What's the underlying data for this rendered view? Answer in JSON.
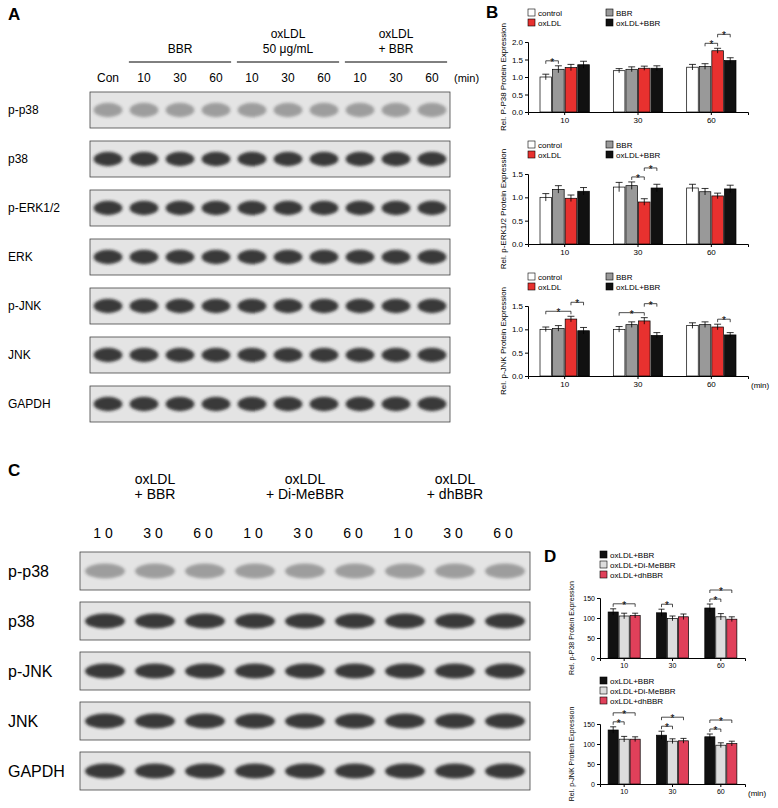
{
  "panel_labels": [
    "A",
    "B",
    "C",
    "D"
  ],
  "blots": [
    {
      "lanes": [
        "Con",
        "10",
        "30",
        "60",
        "10",
        "30",
        "60",
        "10",
        "30",
        "60"
      ],
      "groups": [
        {
          "label": [
            "BBR"
          ],
          "lanes": [
            1,
            3
          ]
        },
        {
          "label": [
            "oxLDL",
            "50 μg/mL"
          ],
          "lanes": [
            4,
            6
          ]
        },
        {
          "label": [
            "oxLDL",
            "+ BBR"
          ],
          "lanes": [
            7,
            9
          ]
        }
      ],
      "unit": "(min)",
      "rows": [
        "p-p38",
        "p38",
        "p-ERK1/2",
        "ERK",
        "p-JNK",
        "JNK",
        "GAPDH"
      ]
    },
    {
      "lanes": [
        "10",
        "30",
        "60",
        "10",
        "30",
        "60",
        "10",
        "30",
        "60"
      ],
      "groups": [
        {
          "label": [
            "oxLDL",
            "+ BBR"
          ],
          "lanes": [
            0,
            2
          ]
        },
        {
          "label": [
            "oxLDL",
            "+ Di-MeBBR"
          ],
          "lanes": [
            3,
            5
          ]
        },
        {
          "label": [
            "oxLDL",
            "+ dhBBR"
          ],
          "lanes": [
            6,
            8
          ]
        }
      ],
      "rows": [
        "p-p38",
        "p38",
        "p-JNK",
        "JNK",
        "GAPDH"
      ]
    }
  ],
  "chart_data": [
    {
      "type": "bar",
      "y_label": "Rel. P-P38 Protein Expression",
      "categories": [
        "10",
        "30",
        "60"
      ],
      "series": [
        {
          "name": "control",
          "color": "#ffffff",
          "values": [
            1.0,
            1.18,
            1.28
          ],
          "errors": [
            0.08,
            0.06,
            0.08
          ]
        },
        {
          "name": "BBR",
          "color": "#999999",
          "values": [
            1.22,
            1.22,
            1.3
          ],
          "errors": [
            0.1,
            0.07,
            0.08
          ]
        },
        {
          "name": "oxLDL",
          "color": "#e8312f",
          "values": [
            1.27,
            1.25,
            1.75
          ],
          "errors": [
            0.09,
            0.06,
            0.07
          ]
        },
        {
          "name": "oxLDL+BBR",
          "color": "#111111",
          "values": [
            1.35,
            1.25,
            1.47
          ],
          "errors": [
            0.1,
            0.07,
            0.08
          ]
        }
      ],
      "ylim": [
        0,
        2
      ],
      "yticks": [
        {
          "value": 0,
          "label": "0.0"
        },
        0.5,
        {
          "value": 1,
          "label": "1.0"
        },
        1.5,
        {
          "value": 2,
          "label": "2.0"
        }
      ],
      "legend": "top-left",
      "annotations": [
        {
          "text": "*",
          "category": "10",
          "series": [
            "control",
            "BBR"
          ]
        },
        {
          "text": "*",
          "category": "60",
          "series": [
            "BBR",
            "oxLDL"
          ]
        },
        {
          "text": "*",
          "category": "60",
          "series": [
            "oxLDL",
            "oxLDL+BBR"
          ]
        }
      ]
    },
    {
      "type": "bar",
      "y_label": "Rel. p-ERK1/2 Protein Expression",
      "categories": [
        "10",
        "30",
        "60"
      ],
      "series": [
        {
          "name": "control",
          "color": "#ffffff",
          "values": [
            1.0,
            1.22,
            1.2
          ],
          "errors": [
            0.08,
            0.1,
            0.08
          ]
        },
        {
          "name": "BBR",
          "color": "#999999",
          "values": [
            1.17,
            1.25,
            1.12
          ],
          "errors": [
            0.08,
            0.08,
            0.07
          ]
        },
        {
          "name": "oxLDL",
          "color": "#e8312f",
          "values": [
            0.98,
            0.9,
            1.03
          ],
          "errors": [
            0.07,
            0.07,
            0.06
          ]
        },
        {
          "name": "oxLDL+BBR",
          "color": "#111111",
          "values": [
            1.13,
            1.2,
            1.18
          ],
          "errors": [
            0.08,
            0.08,
            0.08
          ]
        }
      ],
      "ylim": [
        0,
        1.5
      ],
      "yticks": [
        {
          "value": 0,
          "label": "0.0"
        },
        0.5,
        {
          "value": 1,
          "label": "1.0"
        },
        1.5
      ],
      "legend": "top-left",
      "annotations": [
        {
          "text": "*",
          "category": "30",
          "series": [
            "BBR",
            "oxLDL"
          ]
        },
        {
          "text": "*",
          "category": "30",
          "series": [
            "oxLDL",
            "oxLDL+BBR"
          ]
        }
      ]
    },
    {
      "type": "bar",
      "y_label": "Rel. p-JNK Protein Expression",
      "x_label": "(min)",
      "categories": [
        "10",
        "30",
        "60"
      ],
      "series": [
        {
          "name": "control",
          "color": "#ffffff",
          "values": [
            1.0,
            1.0,
            1.08
          ],
          "errors": [
            0.05,
            0.06,
            0.06
          ]
        },
        {
          "name": "BBR",
          "color": "#999999",
          "values": [
            1.02,
            1.1,
            1.1
          ],
          "errors": [
            0.06,
            0.06,
            0.06
          ]
        },
        {
          "name": "oxLDL",
          "color": "#e8312f",
          "values": [
            1.22,
            1.18,
            1.05
          ],
          "errors": [
            0.06,
            0.07,
            0.06
          ]
        },
        {
          "name": "oxLDL+BBR",
          "color": "#111111",
          "values": [
            0.97,
            0.87,
            0.88
          ],
          "errors": [
            0.07,
            0.06,
            0.05
          ]
        }
      ],
      "ylim": [
        0,
        1.5
      ],
      "yticks": [
        {
          "value": 0,
          "label": "0.0"
        },
        0.5,
        {
          "value": 1,
          "label": "1.0"
        },
        1.5
      ],
      "legend": "top-left",
      "annotations": [
        {
          "text": "*",
          "category": "10",
          "series": [
            "control",
            "oxLDL"
          ]
        },
        {
          "text": "*",
          "category": "10",
          "series": [
            "oxLDL",
            "oxLDL+BBR"
          ]
        },
        {
          "text": "*",
          "category": "30",
          "series": [
            "control",
            "oxLDL"
          ]
        },
        {
          "text": "*",
          "category": "30",
          "series": [
            "oxLDL",
            "oxLDL+BBR"
          ]
        },
        {
          "text": "*",
          "category": "60",
          "series": [
            "oxLDL",
            "oxLDL+BBR"
          ]
        }
      ]
    },
    {
      "type": "bar",
      "y_label": "Rel. p-P38 Protein Expression",
      "categories": [
        "10",
        "30",
        "60"
      ],
      "series": [
        {
          "name": "oxLDL+BBR",
          "color": "#111111",
          "values": [
            115,
            113,
            125
          ],
          "errors": [
            8,
            9,
            10
          ]
        },
        {
          "name": "oxLDL+Di-MeBBR",
          "color": "#dddddd",
          "values": [
            105,
            99,
            103
          ],
          "errors": [
            7,
            6,
            8
          ]
        },
        {
          "name": "oxLDL+dhBBR",
          "color": "#e0405a",
          "values": [
            106,
            103,
            97
          ],
          "errors": [
            6,
            7,
            6
          ]
        }
      ],
      "ylim": [
        0,
        150
      ],
      "yticks": [
        0,
        50,
        100,
        150
      ],
      "legend": "top-left",
      "annotations": [
        {
          "text": "*",
          "category": "10",
          "series": [
            "oxLDL+BBR",
            "oxLDL+dhBBR"
          ]
        },
        {
          "text": "*",
          "category": "30",
          "series": [
            "oxLDL+BBR",
            "oxLDL+Di-MeBBR"
          ]
        },
        {
          "text": "*",
          "category": "60",
          "series": [
            "oxLDL+BBR",
            "oxLDL+Di-MeBBR"
          ]
        },
        {
          "text": "*",
          "category": "60",
          "series": [
            "oxLDL+BBR",
            "oxLDL+dhBBR"
          ]
        }
      ]
    },
    {
      "type": "bar",
      "y_label": "Rel. p-JNK Protein Expression",
      "x_label": "(min)",
      "categories": [
        "10",
        "30",
        "60"
      ],
      "series": [
        {
          "name": "oxLDL+BBR",
          "color": "#111111",
          "values": [
            135,
            122,
            118
          ],
          "errors": [
            8,
            10,
            7
          ]
        },
        {
          "name": "oxLDL+Di-MeBBR",
          "color": "#dddddd",
          "values": [
            112,
            107,
            97
          ],
          "errors": [
            7,
            6,
            6
          ]
        },
        {
          "name": "oxLDL+dhBBR",
          "color": "#e0405a",
          "values": [
            112,
            108,
            101
          ],
          "errors": [
            6,
            6,
            6
          ]
        }
      ],
      "ylim": [
        0,
        150
      ],
      "yticks": [
        0,
        50,
        100,
        150
      ],
      "legend": "top-left",
      "annotations": [
        {
          "text": "*",
          "category": "10",
          "series": [
            "oxLDL+BBR",
            "oxLDL+Di-MeBBR"
          ]
        },
        {
          "text": "*",
          "category": "10",
          "series": [
            "oxLDL+BBR",
            "oxLDL+dhBBR"
          ]
        },
        {
          "text": "*",
          "category": "30",
          "series": [
            "oxLDL+BBR",
            "oxLDL+Di-MeBBR"
          ]
        },
        {
          "text": "*",
          "category": "30",
          "series": [
            "oxLDL+BBR",
            "oxLDL+dhBBR"
          ]
        },
        {
          "text": "*",
          "category": "60",
          "series": [
            "oxLDL+BBR",
            "oxLDL+Di-MeBBR"
          ]
        },
        {
          "text": "*",
          "category": "60",
          "series": [
            "oxLDL+BBR",
            "oxLDL+dhBBR"
          ]
        }
      ]
    }
  ]
}
